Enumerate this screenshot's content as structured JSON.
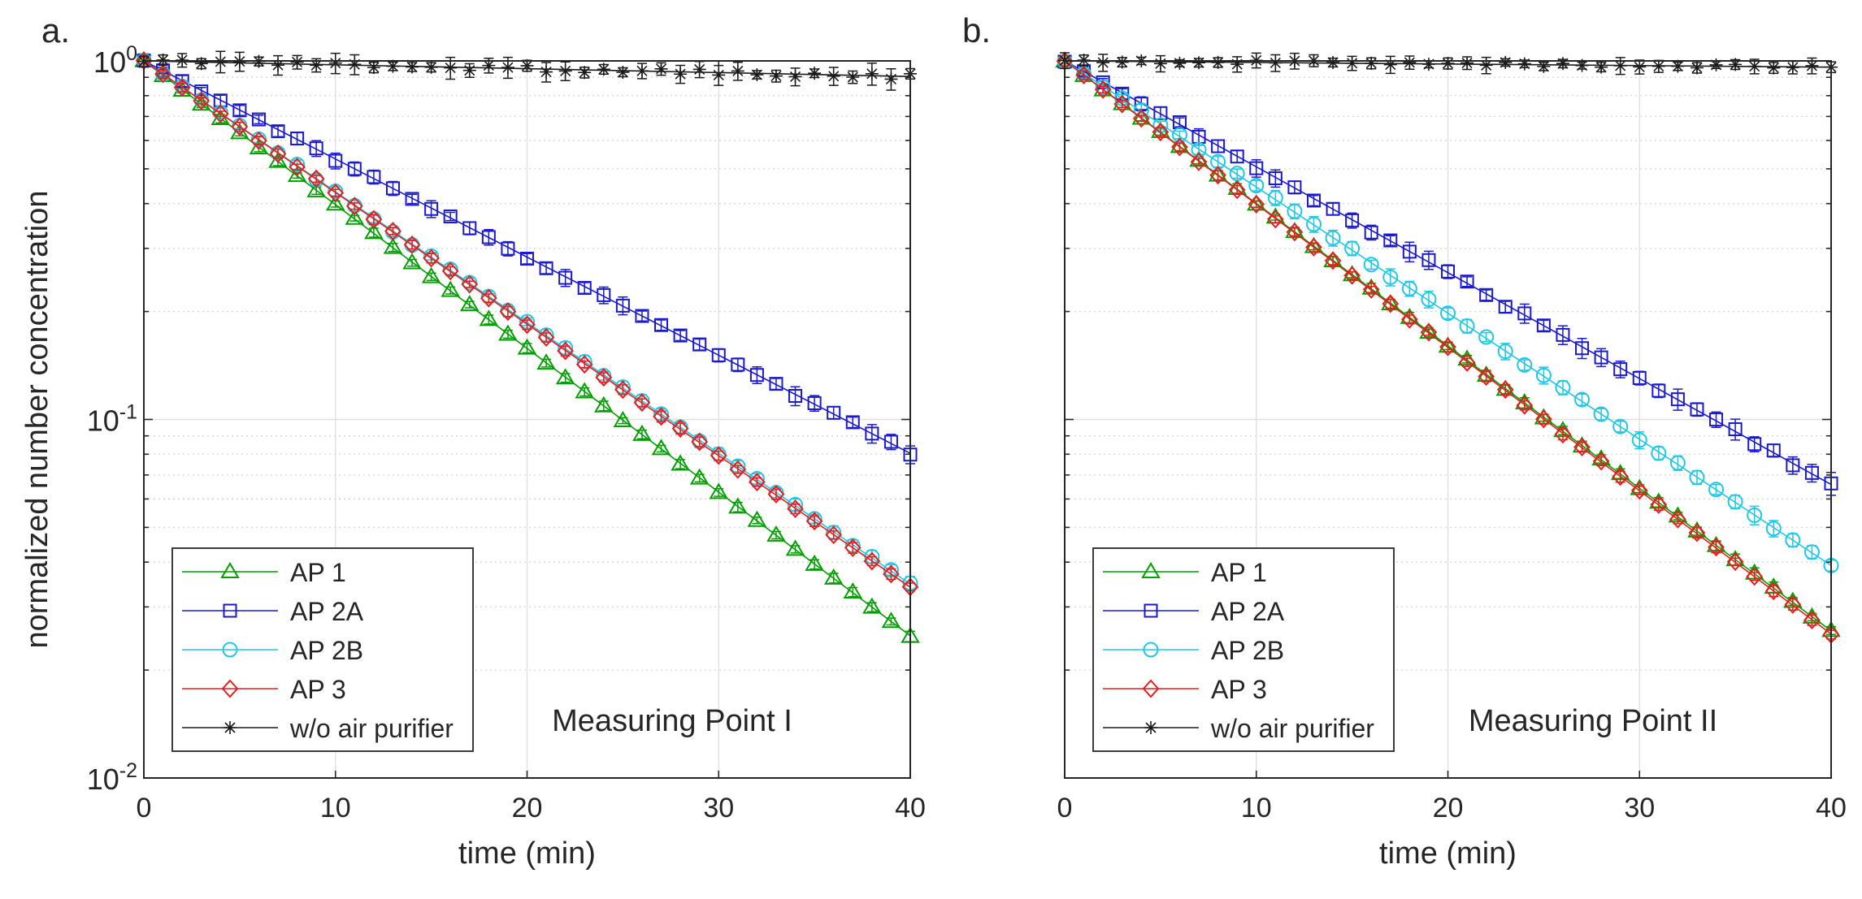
{
  "chart_data": [
    {
      "type": "line",
      "panel_label": "a.",
      "annotation": "Measuring Point I",
      "xlabel": "time (min)",
      "ylabel": "normalized number concentration",
      "xlim": [
        0,
        40
      ],
      "ylim": [
        0.01,
        1
      ],
      "yscale": "log",
      "xticks": [
        0,
        10,
        20,
        30,
        40
      ],
      "xtick_labels": [
        "0",
        "10",
        "20",
        "30",
        "40"
      ],
      "yticks": [
        {
          "value": 0.01,
          "base": "10",
          "exp": "-2"
        },
        {
          "value": 0.1,
          "base": "10",
          "exp": "-1"
        },
        {
          "value": 1,
          "base": "10",
          "exp": "0"
        }
      ],
      "grid": true,
      "legend_position": "bottom-left",
      "series": [
        {
          "name": "AP 1",
          "color": "#00A000",
          "marker": "triangle",
          "rate": 0.0923,
          "noise": 0.005
        },
        {
          "name": "AP 2A",
          "color": "#1A1ACC",
          "marker": "square",
          "rate": 0.063,
          "noise": 0.012
        },
        {
          "name": "AP 2B",
          "color": "#1EC8E6",
          "marker": "circle",
          "rate": 0.084,
          "noise": 0.008
        },
        {
          "name": "AP 3",
          "color": "#E61E1E",
          "marker": "diamond",
          "rate": 0.0845,
          "noise": 0.006
        },
        {
          "name": "w/o air purifier",
          "color": "#1A1A1A",
          "marker": "asterisk",
          "rate": 0.0025,
          "noise": 0.02
        }
      ]
    },
    {
      "type": "line",
      "panel_label": "b.",
      "annotation": "Measuring Point II",
      "xlabel": "time (min)",
      "ylabel": "",
      "xlim": [
        0,
        40
      ],
      "ylim": [
        0.01,
        1
      ],
      "yscale": "log",
      "xticks": [
        0,
        10,
        20,
        30,
        40
      ],
      "xtick_labels": [
        "0",
        "10",
        "20",
        "30",
        "40"
      ],
      "yticks": [],
      "grid": true,
      "legend_position": "bottom-left",
      "series": [
        {
          "name": "AP 1",
          "color": "#00A000",
          "marker": "triangle",
          "rate": 0.0915,
          "noise": 0.006
        },
        {
          "name": "AP 2A",
          "color": "#1A1ACC",
          "marker": "square",
          "rate": 0.068,
          "noise": 0.015
        },
        {
          "name": "AP 2B",
          "color": "#1EC8E6",
          "marker": "circle",
          "rate": 0.081,
          "noise": 0.012
        },
        {
          "name": "AP 3",
          "color": "#E61E1E",
          "marker": "diamond",
          "rate": 0.092,
          "noise": 0.006
        },
        {
          "name": "w/o air purifier",
          "color": "#1A1A1A",
          "marker": "asterisk",
          "rate": 0.001,
          "noise": 0.015
        }
      ]
    }
  ]
}
